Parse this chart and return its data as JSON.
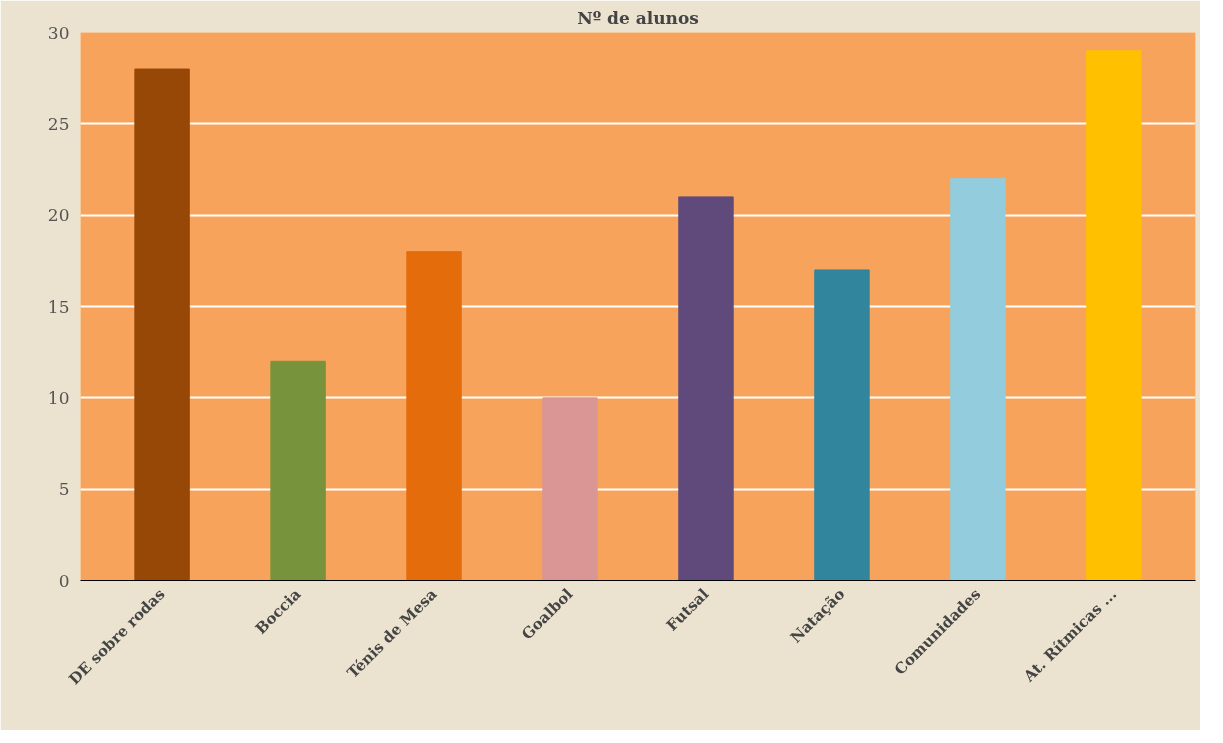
{
  "chart_data": {
    "type": "bar",
    "title": "Nº de alunos",
    "categories": [
      "DE sobre rodas",
      "Boccia",
      "Ténis de Mesa",
      "Goalbol",
      "Futsal",
      "Natação",
      "Comunidades",
      "At. Rítmicas ..."
    ],
    "values": [
      28,
      12,
      18,
      10,
      21,
      17,
      22,
      29
    ],
    "colors": [
      "#974706",
      "#77933c",
      "#e46c0a",
      "#d99694",
      "#604a7b",
      "#31859c",
      "#93cddd",
      "#ffc000"
    ],
    "ylim": [
      0,
      30
    ],
    "yticks": [
      0,
      5,
      10,
      15,
      20,
      25,
      30
    ],
    "grid": "y"
  }
}
